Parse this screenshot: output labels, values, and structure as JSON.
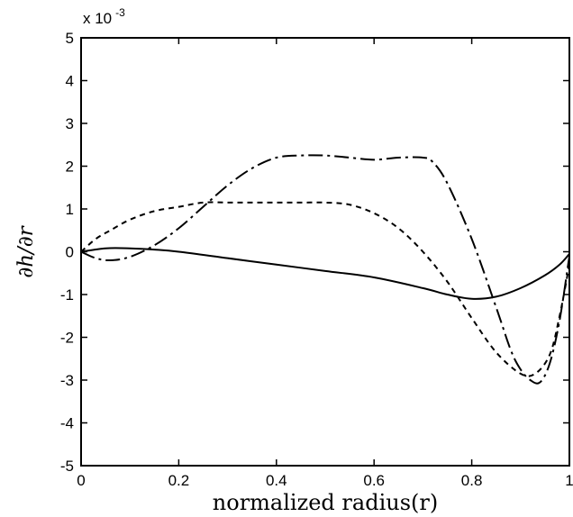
{
  "chart_data": {
    "type": "line",
    "title": "",
    "xlabel": "normalized radius(r)",
    "ylabel": "∂h/∂r",
    "y_multiplier": {
      "base": "x 10",
      "exponent": "-3"
    },
    "xlim": [
      0,
      1
    ],
    "ylim": [
      -5,
      5
    ],
    "x_ticks": [
      0,
      0.2,
      0.4,
      0.6,
      0.8,
      1
    ],
    "x_tick_labels": [
      "0",
      "0.2",
      "0.4",
      "0.6",
      "0.8",
      "1"
    ],
    "y_ticks": [
      -5,
      -4,
      -3,
      -2,
      -1,
      0,
      1,
      2,
      3,
      4,
      5
    ],
    "y_tick_labels": [
      "-5",
      "-4",
      "-3",
      "-2",
      "-1",
      "0",
      "1",
      "2",
      "3",
      "4",
      "5"
    ],
    "grid": false,
    "legend": "none",
    "series": [
      {
        "style": "solid",
        "color": "#000000",
        "x": [
          0,
          0.05,
          0.1,
          0.15,
          0.2,
          0.3,
          0.4,
          0.5,
          0.6,
          0.7,
          0.75,
          0.8,
          0.85,
          0.9,
          0.95,
          0.98,
          1
        ],
        "y": [
          0,
          0.08,
          0.08,
          0.05,
          0,
          -0.15,
          -0.3,
          -0.45,
          -0.6,
          -0.85,
          -1.0,
          -1.1,
          -1.05,
          -0.85,
          -0.55,
          -0.3,
          -0.05
        ]
      },
      {
        "style": "dashed",
        "color": "#000000",
        "x": [
          0,
          0.03,
          0.06,
          0.1,
          0.15,
          0.2,
          0.25,
          0.3,
          0.35,
          0.4,
          0.45,
          0.5,
          0.55,
          0.6,
          0.65,
          0.7,
          0.75,
          0.8,
          0.85,
          0.9,
          0.93,
          0.96,
          0.98,
          1
        ],
        "y": [
          0,
          0.3,
          0.5,
          0.75,
          0.95,
          1.05,
          1.15,
          1.15,
          1.15,
          1.15,
          1.15,
          1.15,
          1.1,
          0.9,
          0.55,
          0.0,
          -0.7,
          -1.55,
          -2.35,
          -2.85,
          -2.85,
          -2.4,
          -1.5,
          -0.3
        ]
      },
      {
        "style": "dashdot",
        "color": "#000000",
        "x": [
          0,
          0.03,
          0.06,
          0.1,
          0.15,
          0.2,
          0.25,
          0.3,
          0.35,
          0.4,
          0.45,
          0.5,
          0.55,
          0.6,
          0.65,
          0.7,
          0.72,
          0.75,
          0.8,
          0.85,
          0.88,
          0.9,
          0.92,
          0.94,
          0.96,
          0.98,
          1
        ],
        "y": [
          0,
          -0.15,
          -0.2,
          -0.12,
          0.15,
          0.55,
          1.05,
          1.55,
          1.95,
          2.2,
          2.25,
          2.25,
          2.2,
          2.15,
          2.2,
          2.2,
          2.1,
          1.6,
          0.3,
          -1.3,
          -2.3,
          -2.75,
          -3.0,
          -3.05,
          -2.6,
          -1.6,
          -0.1
        ]
      }
    ]
  }
}
